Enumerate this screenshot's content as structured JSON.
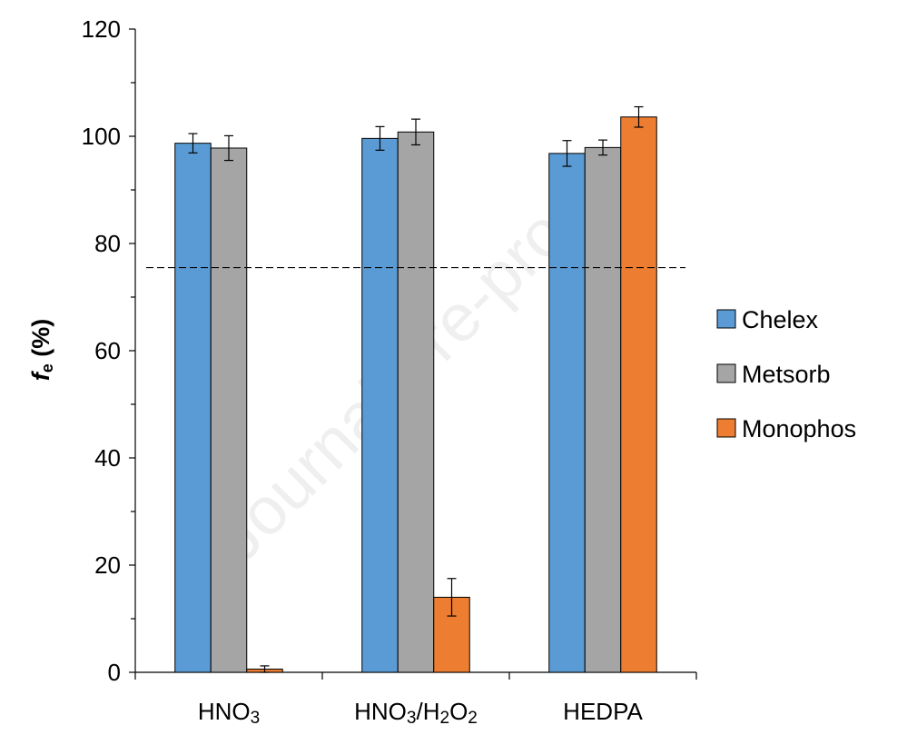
{
  "chart_data": {
    "type": "bar",
    "ylabel": {
      "main": "f",
      "sub": "e",
      "suffix": " (%)"
    },
    "xlabel": "",
    "ylim": [
      0,
      120
    ],
    "yticks": [
      0,
      20,
      40,
      60,
      80,
      100,
      120
    ],
    "categories": [
      {
        "label": "HNO3",
        "parts": [
          {
            "t": "HNO"
          },
          {
            "t": "3",
            "sub": true
          }
        ]
      },
      {
        "label": "HNO3/H2O2",
        "parts": [
          {
            "t": "HNO"
          },
          {
            "t": "3",
            "sub": true
          },
          {
            "t": "/H"
          },
          {
            "t": "2",
            "sub": true
          },
          {
            "t": "O"
          },
          {
            "t": "2",
            "sub": true
          }
        ]
      },
      {
        "label": "HEDPA",
        "parts": [
          {
            "t": "HEDPA"
          }
        ]
      }
    ],
    "series": [
      {
        "name": "Chelex",
        "color": "#5B9BD5",
        "values": [
          98.7,
          99.6,
          96.8
        ],
        "errors": [
          1.8,
          2.2,
          2.4
        ]
      },
      {
        "name": "Metsorb",
        "color": "#A5A5A5",
        "values": [
          97.8,
          100.8,
          97.9
        ],
        "errors": [
          2.3,
          2.4,
          1.4
        ]
      },
      {
        "name": "Monophos",
        "color": "#ED7D31",
        "values": [
          0.6,
          14.0,
          103.6
        ],
        "errors": [
          0.6,
          3.5,
          1.9
        ]
      }
    ],
    "reference_line": {
      "y": 75.5,
      "style": "dashed"
    },
    "legend": {
      "position": "right"
    },
    "grid": false
  },
  "watermark": {
    "text": "Journal Pre-proof"
  }
}
